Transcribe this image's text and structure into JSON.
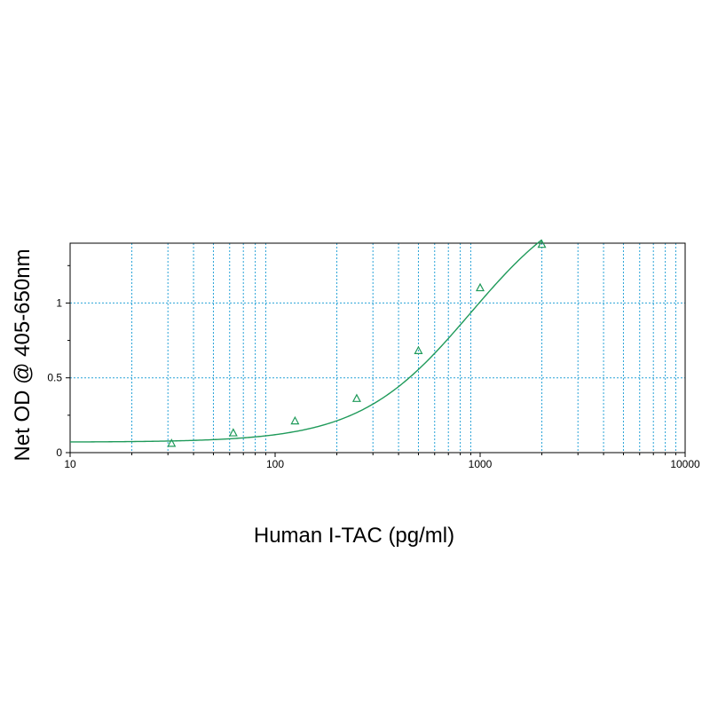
{
  "chart_data": {
    "type": "scatter",
    "title": "",
    "xlabel": "Human I-TAC (pg/ml)",
    "ylabel": "Net OD @ 405-650nm",
    "x_scale": "log",
    "xlim": [
      10,
      10000
    ],
    "ylim": [
      0,
      1.4
    ],
    "grid": true,
    "x_tick_labels": [
      "10",
      "100",
      "1000",
      "10000"
    ],
    "y_tick_labels": [
      "0",
      "0.5",
      "1"
    ],
    "series": [
      {
        "marker": "triangle",
        "x": [
          31.25,
          62.5,
          125,
          250,
          500,
          1000,
          2000
        ],
        "y": [
          0.06,
          0.13,
          0.21,
          0.36,
          0.68,
          1.1,
          1.39
        ]
      }
    ],
    "fit_curve": {
      "model": "4PL",
      "bottom": 0.07,
      "top": 1.8,
      "ec50": 900,
      "hill": 1.6
    },
    "colors": {
      "series": "#1f9a5a",
      "grid": "#29a3d8",
      "axis": "#000000"
    }
  }
}
